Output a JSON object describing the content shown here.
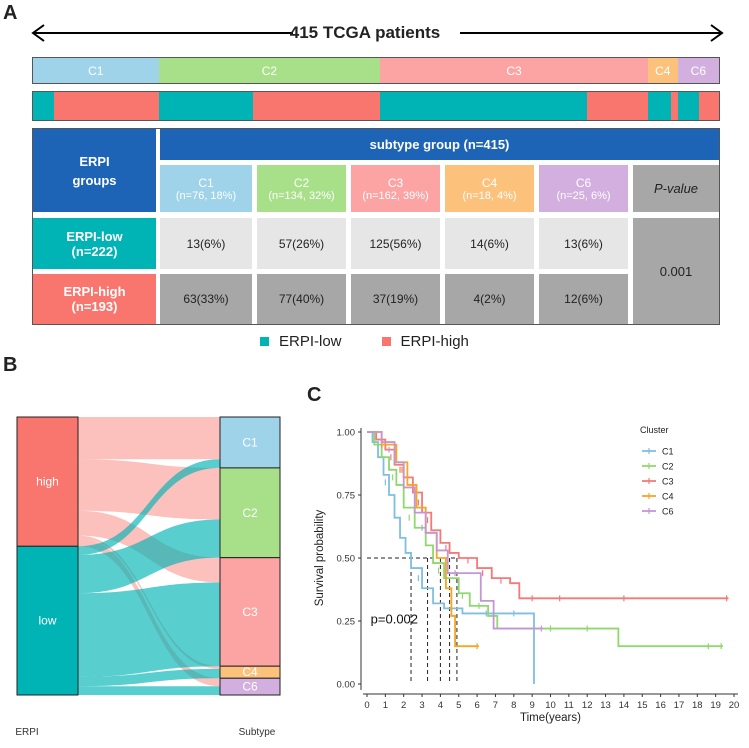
{
  "panel_a": {
    "letter": "A",
    "title": "415 TCGA patients",
    "subtype_bar": [
      {
        "label": "C1",
        "n": 76,
        "color": "#9fd3ea"
      },
      {
        "label": "C2",
        "n": 134,
        "color": "#a8e08a"
      },
      {
        "label": "C3",
        "n": 162,
        "color": "#fba4a3"
      },
      {
        "label": "C4",
        "n": 18,
        "color": "#fcc27c"
      },
      {
        "label": "C6",
        "n": 25,
        "color": "#d3afe0"
      }
    ],
    "erpi_bar": [
      {
        "group": "low",
        "n": 13
      },
      {
        "group": "high",
        "n": 63
      },
      {
        "group": "low",
        "n": 57
      },
      {
        "group": "high",
        "n": 77
      },
      {
        "group": "low",
        "n": 125
      },
      {
        "group": "high",
        "n": 37
      },
      {
        "group": "low",
        "n": 14
      },
      {
        "group": "high",
        "n": 4
      },
      {
        "group": "low",
        "n": 13
      },
      {
        "group": "high",
        "n": 12
      }
    ],
    "colors": {
      "low": "#00b3b4",
      "high": "#f8766d",
      "header": "#1d63b6"
    },
    "table": {
      "row_header_title": "ERPI\ngroups",
      "subtype_header": "subtype group (n=415)",
      "pvalue_header": "P-value",
      "pvalue": "0.001",
      "columns": [
        {
          "name": "C1",
          "count": "(n=76, 18%)",
          "color": "#9fd3ea"
        },
        {
          "name": "C2",
          "count": "(n=134, 32%)",
          "color": "#a8e08a"
        },
        {
          "name": "C3",
          "count": "(n=162, 39%)",
          "color": "#fba4a3"
        },
        {
          "name": "C4",
          "count": "(n=18, 4%)",
          "color": "#fcc27c"
        },
        {
          "name": "C6",
          "count": "(n=25, 6%)",
          "color": "#d3afe0"
        }
      ],
      "rows": [
        {
          "label": "ERPI-low",
          "n": "(n=222)",
          "cells": [
            "13(6%)",
            "57(26%)",
            "125(56%)",
            "14(6%)",
            "13(6%)"
          ]
        },
        {
          "label": "ERPI-high",
          "n": "(n=193)",
          "cells": [
            "63(33%)",
            "77(40%)",
            "37(19%)",
            "4(2%)",
            "12(6%)"
          ]
        }
      ]
    },
    "legend": [
      {
        "label": "ERPI-low",
        "color": "#00b3b4"
      },
      {
        "label": "ERPI-high",
        "color": "#f8766d"
      }
    ]
  },
  "panel_b": {
    "letter": "B",
    "left_axis_label": "ERPI",
    "right_axis_label": "Subtype",
    "left_nodes": [
      {
        "label": "high",
        "n": 193,
        "color": "#f8766d"
      },
      {
        "label": "low",
        "n": 222,
        "color": "#00b3b4"
      }
    ],
    "right_nodes": [
      {
        "label": "C1",
        "n": 76,
        "color": "#9fd3ea"
      },
      {
        "label": "C2",
        "n": 134,
        "color": "#a8e08a"
      },
      {
        "label": "C3",
        "n": 162,
        "color": "#fba4a3"
      },
      {
        "label": "C4",
        "n": 18,
        "color": "#fcc27c"
      },
      {
        "label": "C6",
        "n": 25,
        "color": "#d3afe0"
      }
    ]
  },
  "panel_c": {
    "letter": "C"
  },
  "chart_data": [
    {
      "type": "sankey",
      "title": "",
      "xlabel": "ERPI",
      "x2label": "Subtype",
      "flows": [
        {
          "from": "high",
          "to": "C1",
          "value": 63
        },
        {
          "from": "high",
          "to": "C2",
          "value": 77
        },
        {
          "from": "high",
          "to": "C3",
          "value": 37
        },
        {
          "from": "high",
          "to": "C4",
          "value": 4
        },
        {
          "from": "high",
          "to": "C6",
          "value": 12
        },
        {
          "from": "low",
          "to": "C1",
          "value": 13
        },
        {
          "from": "low",
          "to": "C2",
          "value": 57
        },
        {
          "from": "low",
          "to": "C3",
          "value": 125
        },
        {
          "from": "low",
          "to": "C4",
          "value": 14
        },
        {
          "from": "low",
          "to": "C6",
          "value": 13
        }
      ]
    },
    {
      "type": "line",
      "subtype": "kaplan-meier",
      "title": "",
      "xlabel": "Time(years)",
      "ylabel": "Survival probability",
      "xlim": [
        0,
        20
      ],
      "ylim": [
        0,
        1
      ],
      "x_ticks": [
        "0",
        "1",
        "2",
        "3",
        "4",
        "5",
        "6",
        "7",
        "8",
        "9",
        "10",
        "11",
        "12",
        "13",
        "14",
        "15",
        "16",
        "17",
        "18",
        "19",
        "20"
      ],
      "y_ticks": [
        "0.00",
        "0.25",
        "0.50",
        "0.75",
        "1.00"
      ],
      "legend_title": "Cluster",
      "annotation": "p=0.002",
      "median_line": 0.5,
      "median_times": [
        2.4,
        3.3,
        4.0,
        4.5,
        4.9
      ],
      "series": [
        {
          "name": "C1",
          "color": "#7fbfe0",
          "points": [
            [
              0,
              1
            ],
            [
              0.3,
              0.96
            ],
            [
              0.6,
              0.9
            ],
            [
              0.9,
              0.83
            ],
            [
              1.2,
              0.75
            ],
            [
              1.5,
              0.66
            ],
            [
              1.8,
              0.58
            ],
            [
              2.1,
              0.52
            ],
            [
              2.4,
              0.46
            ],
            [
              3.0,
              0.38
            ],
            [
              3.6,
              0.32
            ],
            [
              4.2,
              0.3
            ],
            [
              5.2,
              0.28
            ],
            [
              8.5,
              0.28
            ],
            [
              9.1,
              0.0
            ]
          ],
          "censors": [
            [
              1.0,
              0.8
            ],
            [
              2.8,
              0.42
            ],
            [
              4.6,
              0.3
            ],
            [
              6.5,
              0.28
            ],
            [
              8.0,
              0.28
            ]
          ]
        },
        {
          "name": "C2",
          "color": "#8fd870",
          "points": [
            [
              0,
              1
            ],
            [
              0.4,
              0.95
            ],
            [
              0.8,
              0.9
            ],
            [
              1.2,
              0.85
            ],
            [
              1.6,
              0.79
            ],
            [
              2.0,
              0.7
            ],
            [
              2.6,
              0.62
            ],
            [
              3.2,
              0.55
            ],
            [
              3.6,
              0.48
            ],
            [
              4.2,
              0.42
            ],
            [
              5.0,
              0.36
            ],
            [
              5.6,
              0.31
            ],
            [
              6.6,
              0.27
            ],
            [
              7.1,
              0.22
            ],
            [
              13.6,
              0.22
            ],
            [
              13.7,
              0.15
            ],
            [
              19.4,
              0.15
            ]
          ],
          "censors": [
            [
              1.4,
              0.82
            ],
            [
              2.3,
              0.66
            ],
            [
              3.9,
              0.45
            ],
            [
              5.2,
              0.35
            ],
            [
              6.1,
              0.31
            ],
            [
              10.0,
              0.22
            ],
            [
              12.0,
              0.22
            ],
            [
              18.6,
              0.15
            ],
            [
              19.3,
              0.15
            ]
          ]
        },
        {
          "name": "C3",
          "color": "#f47a78",
          "points": [
            [
              0,
              1
            ],
            [
              0.5,
              0.97
            ],
            [
              1.0,
              0.93
            ],
            [
              1.5,
              0.87
            ],
            [
              2.0,
              0.82
            ],
            [
              2.5,
              0.76
            ],
            [
              3.0,
              0.68
            ],
            [
              3.5,
              0.61
            ],
            [
              4.0,
              0.56
            ],
            [
              4.5,
              0.52
            ],
            [
              5.0,
              0.5
            ],
            [
              6.0,
              0.46
            ],
            [
              6.8,
              0.42
            ],
            [
              7.8,
              0.4
            ],
            [
              8.3,
              0.34
            ],
            [
              19.7,
              0.34
            ]
          ],
          "censors": [
            [
              0.8,
              0.95
            ],
            [
              1.3,
              0.9
            ],
            [
              1.8,
              0.85
            ],
            [
              2.2,
              0.8
            ],
            [
              2.8,
              0.72
            ],
            [
              3.3,
              0.65
            ],
            [
              4.3,
              0.54
            ],
            [
              5.5,
              0.49
            ],
            [
              6.3,
              0.44
            ],
            [
              7.3,
              0.41
            ],
            [
              9.0,
              0.34
            ],
            [
              10.5,
              0.34
            ],
            [
              14.0,
              0.34
            ],
            [
              19.6,
              0.34
            ]
          ]
        },
        {
          "name": "C4",
          "color": "#f5a623",
          "points": [
            [
              0,
              1
            ],
            [
              0.8,
              0.95
            ],
            [
              1.6,
              0.88
            ],
            [
              2.2,
              0.79
            ],
            [
              2.7,
              0.7
            ],
            [
              3.2,
              0.6
            ],
            [
              3.8,
              0.5
            ],
            [
              4.3,
              0.38
            ],
            [
              4.6,
              0.27
            ],
            [
              4.8,
              0.15
            ],
            [
              6.1,
              0.15
            ]
          ],
          "censors": [
            [
              1.9,
              0.85
            ],
            [
              6.0,
              0.15
            ]
          ]
        },
        {
          "name": "C6",
          "color": "#c496d6",
          "points": [
            [
              0,
              1
            ],
            [
              0.8,
              0.96
            ],
            [
              1.5,
              0.88
            ],
            [
              2.0,
              0.78
            ],
            [
              2.6,
              0.68
            ],
            [
              3.2,
              0.6
            ],
            [
              3.8,
              0.53
            ],
            [
              4.4,
              0.44
            ],
            [
              5.7,
              0.44
            ],
            [
              6.2,
              0.33
            ],
            [
              6.9,
              0.22
            ],
            [
              9.6,
              0.22
            ]
          ],
          "censors": [
            [
              1.2,
              0.93
            ],
            [
              3.0,
              0.62
            ],
            [
              4.8,
              0.44
            ],
            [
              9.5,
              0.22
            ]
          ]
        }
      ]
    }
  ]
}
